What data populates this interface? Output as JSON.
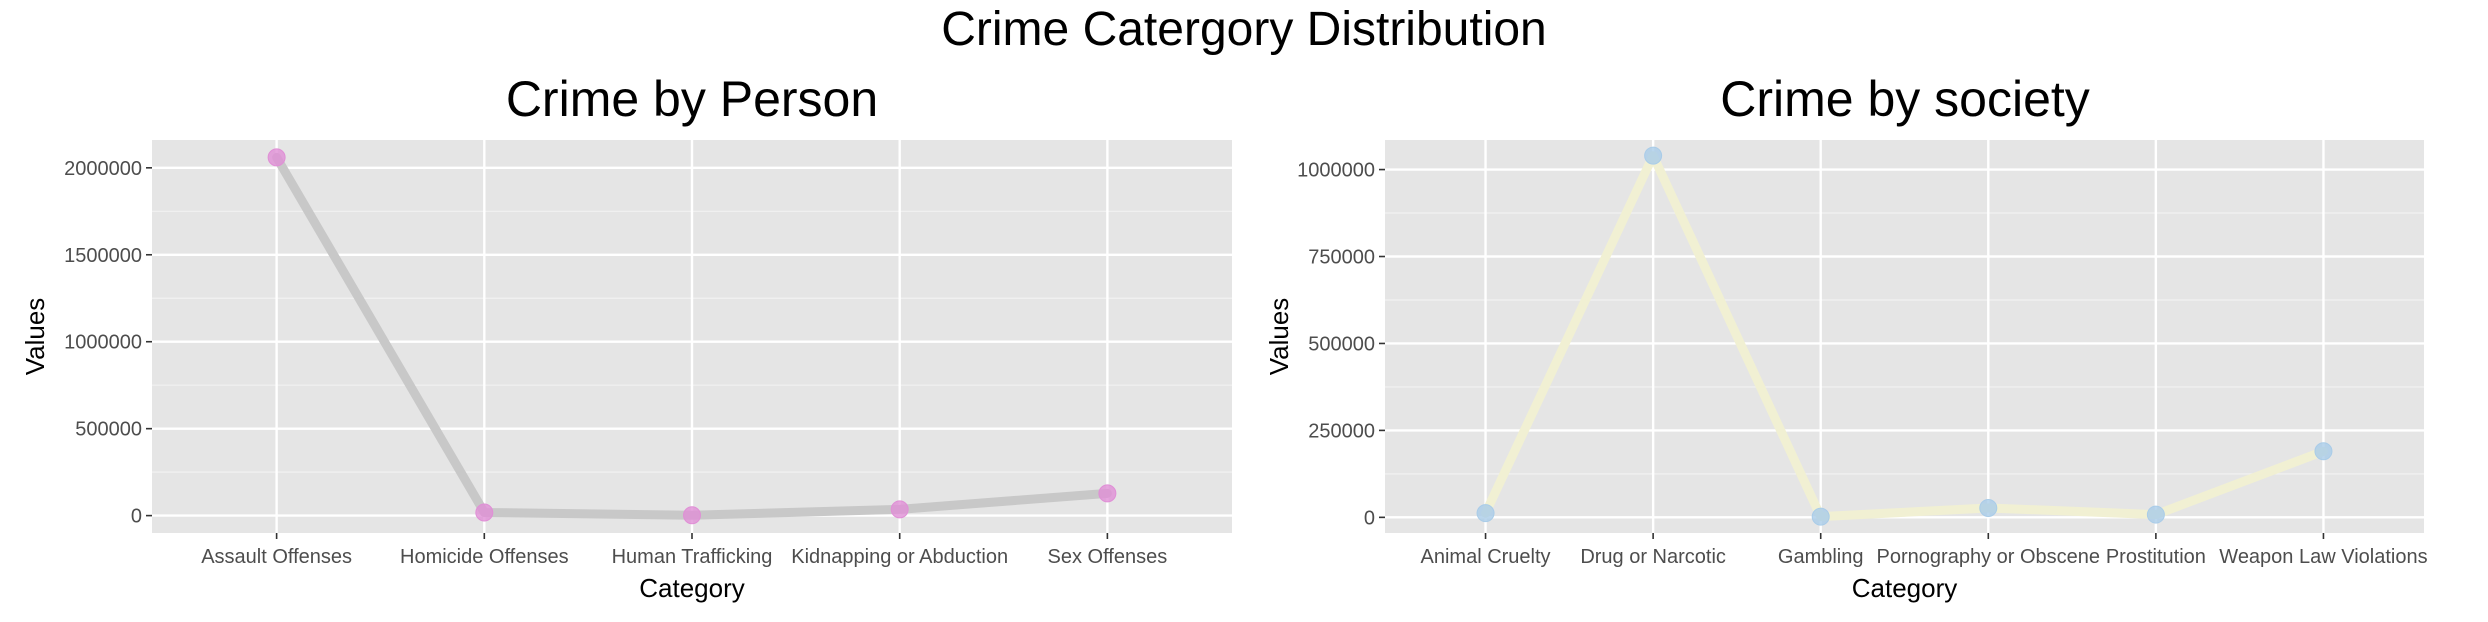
{
  "title": "Crime Catergory Distribution",
  "chart_data": [
    {
      "type": "line",
      "title": "Crime by Person",
      "xlabel": "Category",
      "ylabel": "Values",
      "categories": [
        "Assault Offenses",
        "Homicide Offenses",
        "Human Trafficking",
        "Kidnapping or Abduction",
        "Sex Offenses"
      ],
      "values": [
        2060000,
        18000,
        2000,
        36000,
        128000
      ],
      "yticks": [
        0,
        500000,
        1000000,
        1500000,
        2000000
      ],
      "ytick_labels": [
        "0",
        "500000",
        "1000000",
        "1500000",
        "2000000"
      ],
      "ylim": [
        -100000,
        2160000
      ],
      "grid": true,
      "line_color": "#c8c8c8",
      "point_color": "#e08fd6",
      "panel_background": "#e5e5e5"
    },
    {
      "type": "line",
      "title": "Crime by society",
      "xlabel": "Category",
      "ylabel": "Values",
      "categories": [
        "Animal Cruelty",
        "Drug or Narcotic",
        "Gambling",
        "Pornography or Obscene",
        "Prostitution",
        "Weapon Law Violations"
      ],
      "values": [
        12000,
        1040000,
        2000,
        27000,
        8000,
        190000
      ],
      "yticks": [
        0,
        250000,
        500000,
        750000,
        1000000
      ],
      "ytick_labels": [
        "0",
        "250000",
        "500000",
        "750000",
        "1000000"
      ],
      "ylim": [
        -45000,
        1085000
      ],
      "grid": true,
      "line_color": "#f1f0d3",
      "point_color": "#a9cce8",
      "panel_background": "#e5e5e5"
    }
  ]
}
